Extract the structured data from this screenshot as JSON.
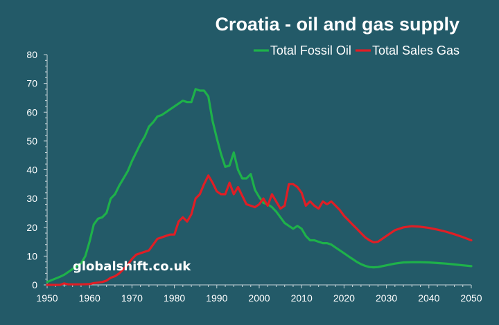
{
  "chart_data": {
    "type": "line",
    "title": "Croatia - oil and gas supply",
    "xlabel": "",
    "ylabel": "",
    "xlim": [
      1950,
      2050
    ],
    "ylim": [
      0,
      80
    ],
    "x_ticks": [
      1950,
      1960,
      1970,
      1980,
      1990,
      2000,
      2010,
      2020,
      2030,
      2040,
      2050
    ],
    "y_ticks": [
      0,
      10,
      20,
      30,
      40,
      50,
      60,
      70,
      80
    ],
    "grid": false,
    "legend_position": "top-right",
    "watermark": "globalshift.co.uk",
    "series": [
      {
        "name": "Total Fossil Oil",
        "color": "#1eb14a",
        "points": [
          [
            1950,
            1
          ],
          [
            1951,
            1.6
          ],
          [
            1952,
            2.2
          ],
          [
            1953,
            2.8
          ],
          [
            1954,
            3.5
          ],
          [
            1955,
            4.5
          ],
          [
            1956,
            5.5
          ],
          [
            1957,
            6.5
          ],
          [
            1958,
            7.5
          ],
          [
            1959,
            10
          ],
          [
            1960,
            15
          ],
          [
            1961,
            21
          ],
          [
            1962,
            23
          ],
          [
            1963,
            23.5
          ],
          [
            1964,
            25
          ],
          [
            1965,
            30
          ],
          [
            1966,
            31.5
          ],
          [
            1967,
            34.5
          ],
          [
            1968,
            37
          ],
          [
            1969,
            39.5
          ],
          [
            1970,
            43
          ],
          [
            1971,
            46
          ],
          [
            1972,
            49
          ],
          [
            1973,
            51.5
          ],
          [
            1974,
            55
          ],
          [
            1975,
            56.5
          ],
          [
            1976,
            58.5
          ],
          [
            1977,
            59
          ],
          [
            1978,
            60
          ],
          [
            1979,
            61
          ],
          [
            1980,
            62
          ],
          [
            1981,
            63
          ],
          [
            1982,
            64
          ],
          [
            1983,
            63.5
          ],
          [
            1984,
            63.5
          ],
          [
            1985,
            68
          ],
          [
            1986,
            67.5
          ],
          [
            1987,
            67.5
          ],
          [
            1988,
            65.5
          ],
          [
            1989,
            57
          ],
          [
            1990,
            51
          ],
          [
            1991,
            45.5
          ],
          [
            1992,
            41
          ],
          [
            1993,
            41.5
          ],
          [
            1994,
            46
          ],
          [
            1995,
            40
          ],
          [
            1996,
            37
          ],
          [
            1997,
            37
          ],
          [
            1998,
            38.5
          ],
          [
            1999,
            33
          ],
          [
            2000,
            30.5
          ],
          [
            2001,
            28.5
          ],
          [
            2002,
            28
          ],
          [
            2003,
            27
          ],
          [
            2004,
            25.5
          ],
          [
            2005,
            23.5
          ],
          [
            2006,
            21.5
          ],
          [
            2007,
            20.5
          ],
          [
            2008,
            19.5
          ],
          [
            2009,
            20.5
          ],
          [
            2010,
            19.5
          ],
          [
            2011,
            17
          ],
          [
            2012,
            15.5
          ],
          [
            2013,
            15.5
          ],
          [
            2014,
            15
          ],
          [
            2015,
            14.5
          ],
          [
            2016,
            14.5
          ],
          [
            2017,
            14
          ],
          [
            2018,
            13
          ],
          [
            2019,
            12
          ],
          [
            2020,
            11
          ],
          [
            2021,
            10
          ],
          [
            2022,
            9
          ],
          [
            2023,
            8
          ],
          [
            2024,
            7.2
          ],
          [
            2025,
            6.6
          ],
          [
            2026,
            6.2
          ],
          [
            2027,
            6.1
          ],
          [
            2028,
            6.2
          ],
          [
            2030,
            6.8
          ],
          [
            2032,
            7.4
          ],
          [
            2034,
            7.8
          ],
          [
            2036,
            7.9
          ],
          [
            2038,
            7.9
          ],
          [
            2040,
            7.8
          ],
          [
            2042,
            7.6
          ],
          [
            2044,
            7.4
          ],
          [
            2046,
            7.1
          ],
          [
            2048,
            6.8
          ],
          [
            2050,
            6.5
          ]
        ]
      },
      {
        "name": "Total Sales Gas",
        "color": "#e01e25",
        "points": [
          [
            1950,
            0
          ],
          [
            1953,
            0
          ],
          [
            1954,
            0.5
          ],
          [
            1955,
            0.2
          ],
          [
            1958,
            0.2
          ],
          [
            1960,
            0.3
          ],
          [
            1961,
            0.6
          ],
          [
            1962,
            0.8
          ],
          [
            1963,
            1
          ],
          [
            1964,
            1.5
          ],
          [
            1965,
            2.5
          ],
          [
            1966,
            3
          ],
          [
            1967,
            4
          ],
          [
            1968,
            5.5
          ],
          [
            1969,
            7
          ],
          [
            1970,
            9
          ],
          [
            1971,
            10.5
          ],
          [
            1972,
            11
          ],
          [
            1973,
            11.5
          ],
          [
            1974,
            12
          ],
          [
            1975,
            14
          ],
          [
            1976,
            16
          ],
          [
            1977,
            16.5
          ],
          [
            1978,
            17
          ],
          [
            1979,
            17.5
          ],
          [
            1980,
            17.5
          ],
          [
            1981,
            22
          ],
          [
            1982,
            23.5
          ],
          [
            1983,
            22
          ],
          [
            1984,
            24.5
          ],
          [
            1985,
            30
          ],
          [
            1986,
            31.5
          ],
          [
            1987,
            35
          ],
          [
            1988,
            38
          ],
          [
            1989,
            35.5
          ],
          [
            1990,
            32.5
          ],
          [
            1991,
            31.5
          ],
          [
            1992,
            31.5
          ],
          [
            1993,
            35.5
          ],
          [
            1994,
            31.5
          ],
          [
            1995,
            34
          ],
          [
            1996,
            31
          ],
          [
            1997,
            28
          ],
          [
            1998,
            27.5
          ],
          [
            1999,
            27
          ],
          [
            2000,
            28
          ],
          [
            2001,
            30
          ],
          [
            2002,
            27.5
          ],
          [
            2003,
            31.5
          ],
          [
            2004,
            29
          ],
          [
            2005,
            26.5
          ],
          [
            2006,
            27.5
          ],
          [
            2007,
            35
          ],
          [
            2008,
            35
          ],
          [
            2009,
            34
          ],
          [
            2010,
            32
          ],
          [
            2011,
            27.5
          ],
          [
            2012,
            29
          ],
          [
            2013,
            27.5
          ],
          [
            2014,
            26.5
          ],
          [
            2015,
            29
          ],
          [
            2016,
            28
          ],
          [
            2017,
            29
          ],
          [
            2018,
            27.5
          ],
          [
            2019,
            26
          ],
          [
            2020,
            24
          ],
          [
            2021,
            22.5
          ],
          [
            2022,
            21
          ],
          [
            2023,
            19.5
          ],
          [
            2024,
            18
          ],
          [
            2025,
            16.5
          ],
          [
            2026,
            15.5
          ],
          [
            2027,
            14.8
          ],
          [
            2028,
            15
          ],
          [
            2029,
            16
          ],
          [
            2030,
            17
          ],
          [
            2031,
            18
          ],
          [
            2032,
            19
          ],
          [
            2034,
            20
          ],
          [
            2036,
            20.4
          ],
          [
            2038,
            20.2
          ],
          [
            2040,
            19.8
          ],
          [
            2042,
            19.2
          ],
          [
            2044,
            18.5
          ],
          [
            2046,
            17.6
          ],
          [
            2048,
            16.6
          ],
          [
            2050,
            15.5
          ]
        ]
      }
    ]
  }
}
